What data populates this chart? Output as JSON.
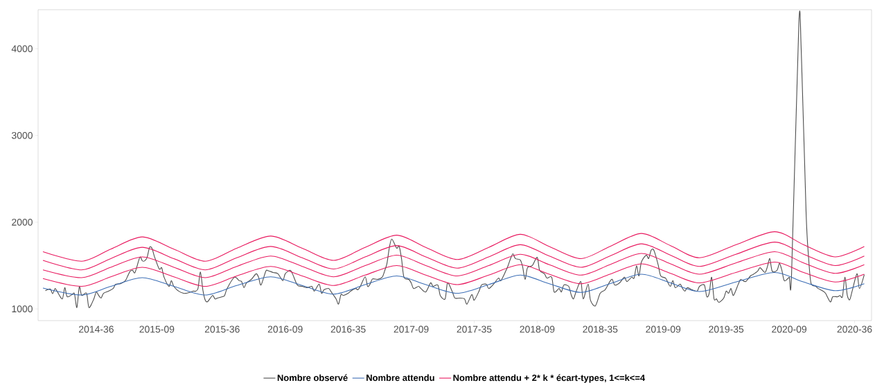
{
  "chart_data": {
    "type": "line",
    "xlim": [
      "2014-03-17",
      "2020-10-19"
    ],
    "ylim": [
      865,
      4450
    ],
    "xticks": [
      {
        "value": "2014-09-01",
        "label": "2014-36"
      },
      {
        "value": "2015-02-23",
        "label": "2015-09"
      },
      {
        "value": "2015-08-31",
        "label": "2015-36"
      },
      {
        "value": "2016-02-29",
        "label": "2016-09"
      },
      {
        "value": "2016-08-29",
        "label": "2016-35"
      },
      {
        "value": "2017-02-27",
        "label": "2017-09"
      },
      {
        "value": "2017-08-28",
        "label": "2017-35"
      },
      {
        "value": "2018-02-26",
        "label": "2018-09"
      },
      {
        "value": "2018-08-27",
        "label": "2018-35"
      },
      {
        "value": "2019-02-25",
        "label": "2019-09"
      },
      {
        "value": "2019-08-26",
        "label": "2019-35"
      },
      {
        "value": "2020-02-24",
        "label": "2020-09"
      },
      {
        "value": "2020-08-31",
        "label": "2020-36"
      }
    ],
    "yticks": [
      1000,
      2000,
      3000,
      4000
    ],
    "legend": "bottom",
    "marker": "none",
    "x": [
      "2014-03-31",
      "2014-07-21",
      "2014-10-13",
      "2015-01-12",
      "2015-04-13",
      "2015-07-13",
      "2015-10-12",
      "2016-01-18",
      "2016-04-18",
      "2016-07-18",
      "2016-10-17",
      "2017-01-16",
      "2017-04-10",
      "2017-07-10",
      "2017-10-09",
      "2018-01-08",
      "2018-04-02",
      "2018-07-02",
      "2018-09-24",
      "2018-12-24",
      "2019-03-18",
      "2019-06-10",
      "2019-09-23",
      "2020-01-13",
      "2020-04-06",
      "2020-07-06",
      "2020-09-28"
    ],
    "series": [
      {
        "name": "Nombre observé",
        "color": "#4d4d4d",
        "x": [
          "2014-04-07",
          "2014-04-21",
          "2014-04-28",
          "2014-05-05",
          "2014-05-12",
          "2014-05-26",
          "2014-06-02",
          "2014-06-09",
          "2014-06-23",
          "2014-06-30",
          "2014-07-07",
          "2014-07-14",
          "2014-07-21",
          "2014-08-04",
          "2014-08-11",
          "2014-08-25",
          "2014-09-01",
          "2014-09-08",
          "2014-09-15",
          "2014-09-22",
          "2014-10-06",
          "2014-10-20",
          "2014-10-27",
          "2014-11-10",
          "2014-11-24",
          "2014-12-01",
          "2014-12-08",
          "2014-12-15",
          "2014-12-22",
          "2015-01-05",
          "2015-01-12",
          "2015-01-19",
          "2015-01-26",
          "2015-02-02",
          "2015-02-09",
          "2015-02-16",
          "2015-03-02",
          "2015-03-09",
          "2015-03-16",
          "2015-03-30",
          "2015-04-06",
          "2015-04-13",
          "2015-04-27",
          "2015-05-11",
          "2015-05-18",
          "2015-06-01",
          "2015-06-08",
          "2015-06-15",
          "2015-06-22",
          "2015-06-29",
          "2015-07-06",
          "2015-07-13",
          "2015-07-20",
          "2015-08-03",
          "2015-08-10",
          "2015-08-17",
          "2015-08-31",
          "2015-09-07",
          "2015-09-14",
          "2015-10-05",
          "2015-10-19",
          "2015-10-26",
          "2015-11-02",
          "2015-11-09",
          "2015-11-23",
          "2015-12-07",
          "2015-12-14",
          "2015-12-21",
          "2016-01-04",
          "2016-01-11",
          "2016-01-25",
          "2016-02-08",
          "2016-02-22",
          "2016-02-29",
          "2016-03-14",
          "2016-03-21",
          "2016-04-04",
          "2016-04-18",
          "2016-05-02",
          "2016-05-16",
          "2016-05-23",
          "2016-06-06",
          "2016-06-13",
          "2016-06-20",
          "2016-07-04",
          "2016-07-11",
          "2016-07-25",
          "2016-08-01",
          "2016-08-08",
          "2016-08-15",
          "2016-08-29",
          "2016-09-05",
          "2016-09-19",
          "2016-09-26",
          "2016-10-03",
          "2016-10-17",
          "2016-10-24",
          "2016-10-31",
          "2016-11-07",
          "2016-11-21",
          "2016-12-05",
          "2016-12-12",
          "2016-12-19",
          "2016-12-26",
          "2017-01-02",
          "2017-01-16",
          "2017-01-23",
          "2017-01-30",
          "2017-02-06",
          "2017-02-20",
          "2017-02-27",
          "2017-03-06",
          "2017-03-20",
          "2017-03-27",
          "2017-04-10",
          "2017-04-24",
          "2017-05-01",
          "2017-05-15",
          "2017-05-22",
          "2017-06-05",
          "2017-06-12",
          "2017-06-26",
          "2017-07-03",
          "2017-07-17",
          "2017-07-31",
          "2017-08-07",
          "2017-08-21",
          "2017-08-28",
          "2017-09-11",
          "2017-09-18",
          "2017-10-02",
          "2017-10-09",
          "2017-10-23",
          "2017-11-06",
          "2017-11-13",
          "2017-11-27",
          "2017-12-04",
          "2017-12-11",
          "2017-12-18",
          "2017-12-25",
          "2018-01-08",
          "2018-01-15",
          "2018-01-22",
          "2018-01-29",
          "2018-02-12",
          "2018-02-26",
          "2018-03-05",
          "2018-03-19",
          "2018-03-26",
          "2018-04-09",
          "2018-04-16",
          "2018-04-30",
          "2018-05-07",
          "2018-05-14",
          "2018-05-28",
          "2018-06-04",
          "2018-06-11",
          "2018-06-18",
          "2018-07-02",
          "2018-07-09",
          "2018-07-23",
          "2018-07-30",
          "2018-08-13",
          "2018-08-27",
          "2018-09-10",
          "2018-09-24",
          "2018-10-01",
          "2018-10-08",
          "2018-10-22",
          "2018-11-05",
          "2018-11-12",
          "2018-11-26",
          "2018-12-03",
          "2018-12-10",
          "2018-12-17",
          "2018-12-24",
          "2019-01-07",
          "2019-01-14",
          "2019-01-21",
          "2019-01-28",
          "2019-02-04",
          "2019-02-11",
          "2019-02-18",
          "2019-03-04",
          "2019-03-11",
          "2019-03-18",
          "2019-03-25",
          "2019-04-01",
          "2019-04-15",
          "2019-04-22",
          "2019-04-29",
          "2019-05-06",
          "2019-05-20",
          "2019-06-03",
          "2019-06-10",
          "2019-06-24",
          "2019-07-01",
          "2019-07-08",
          "2019-07-15",
          "2019-07-22",
          "2019-07-29",
          "2019-08-05",
          "2019-08-19",
          "2019-08-26",
          "2019-09-02",
          "2019-09-09",
          "2019-09-16",
          "2019-09-30",
          "2019-10-07",
          "2019-10-21",
          "2019-11-04",
          "2019-11-11",
          "2019-11-25",
          "2019-12-02",
          "2019-12-16",
          "2019-12-23",
          "2019-12-30",
          "2020-01-06",
          "2020-01-20",
          "2020-01-27",
          "2020-02-03",
          "2020-02-10",
          "2020-02-24",
          "2020-03-02",
          "2020-03-23",
          "2020-03-30",
          "2020-04-13",
          "2020-04-20",
          "2020-04-27",
          "2020-05-11",
          "2020-05-18",
          "2020-06-01",
          "2020-06-08",
          "2020-06-22",
          "2020-06-29",
          "2020-07-13",
          "2020-07-20",
          "2020-07-27",
          "2020-08-03",
          "2020-08-10",
          "2020-08-17",
          "2020-08-24",
          "2020-09-07",
          "2020-09-14",
          "2020-09-28"
        ],
        "values": [
          1210,
          1230,
          1175,
          1235,
          1195,
          1115,
          1245,
          1140,
          1165,
          1175,
          1015,
          1255,
          1155,
          1180,
          1015,
          1115,
          1195,
          1155,
          1125,
          1180,
          1205,
          1235,
          1285,
          1290,
          1325,
          1380,
          1435,
          1445,
          1420,
          1595,
          1555,
          1555,
          1595,
          1710,
          1700,
          1605,
          1460,
          1475,
          1365,
          1260,
          1325,
          1260,
          1205,
          1180,
          1180,
          1195,
          1205,
          1205,
          1235,
          1425,
          1220,
          1100,
          1085,
          1155,
          1115,
          1125,
          1140,
          1155,
          1235,
          1365,
          1325,
          1315,
          1245,
          1300,
          1340,
          1405,
          1365,
          1275,
          1435,
          1440,
          1420,
          1405,
          1325,
          1405,
          1445,
          1405,
          1275,
          1260,
          1245,
          1260,
          1205,
          1285,
          1180,
          1220,
          1235,
          1195,
          1115,
          1055,
          1165,
          1155,
          1180,
          1205,
          1235,
          1220,
          1260,
          1370,
          1260,
          1285,
          1345,
          1340,
          1365,
          1435,
          1525,
          1710,
          1805,
          1700,
          1725,
          1580,
          1365,
          1340,
          1300,
          1235,
          1260,
          1235,
          1195,
          1300,
          1260,
          1275,
          1155,
          1115,
          1300,
          1195,
          1125,
          1125,
          1115,
          1055,
          1165,
          1100,
          1205,
          1275,
          1285,
          1235,
          1285,
          1355,
          1325,
          1435,
          1500,
          1580,
          1635,
          1580,
          1565,
          1485,
          1340,
          1475,
          1500,
          1595,
          1445,
          1405,
          1355,
          1365,
          1195,
          1235,
          1195,
          1275,
          1260,
          1165,
          1115,
          1195,
          1315,
          1115,
          1285,
          1100,
          1035,
          1180,
          1220,
          1315,
          1340,
          1275,
          1300,
          1365,
          1315,
          1365,
          1355,
          1495,
          1380,
          1540,
          1620,
          1580,
          1675,
          1685,
          1605,
          1500,
          1380,
          1355,
          1300,
          1260,
          1325,
          1245,
          1285,
          1235,
          1205,
          1245,
          1220,
          1205,
          1260,
          1275,
          1140,
          1180,
          1365,
          1115,
          1115,
          1075,
          1125,
          1205,
          1180,
          1235,
          1155,
          1285,
          1340,
          1315,
          1380,
          1395,
          1435,
          1475,
          1420,
          1485,
          1580,
          1435,
          1445,
          1525,
          1445,
          1325,
          1365,
          1405,
          4290,
          3970,
          2100,
          1600,
          1300,
          1260,
          1235,
          1205,
          1180,
          1080,
          1140,
          1140,
          1155,
          1140,
          1365,
          1155,
          1105,
          1205,
          1405,
          1235,
          1395
        ]
      },
      {
        "name": "Nombre attendu",
        "color": "#3b6db5",
        "values": [
          1240,
          1160,
          1260,
          1360,
          1260,
          1160,
          1270,
          1370,
          1270,
          1170,
          1280,
          1380,
          1280,
          1180,
          1280,
          1390,
          1290,
          1190,
          1290,
          1400,
          1300,
          1200,
          1310,
          1420,
          1310,
          1210,
          1290
        ]
      },
      {
        "name": "Nombre attendu + 2* k * écart-types, 1<=k<=4",
        "color": "#e8185e",
        "values": [
          1350,
          1260,
          1370,
          1480,
          1370,
          1260,
          1380,
          1490,
          1380,
          1270,
          1390,
          1500,
          1390,
          1280,
          1390,
          1510,
          1400,
          1290,
          1400,
          1520,
          1410,
          1300,
          1420,
          1540,
          1420,
          1310,
          1400
        ]
      },
      {
        "color": "#e8185e",
        "values": [
          1450,
          1360,
          1480,
          1600,
          1480,
          1360,
          1490,
          1610,
          1490,
          1370,
          1500,
          1620,
          1500,
          1380,
          1500,
          1630,
          1510,
          1390,
          1510,
          1640,
          1520,
          1400,
          1530,
          1660,
          1530,
          1410,
          1510
        ]
      },
      {
        "color": "#e8185e",
        "values": [
          1560,
          1450,
          1580,
          1710,
          1580,
          1450,
          1590,
          1720,
          1590,
          1460,
          1600,
          1730,
          1600,
          1470,
          1600,
          1740,
          1610,
          1480,
          1610,
          1750,
          1620,
          1490,
          1630,
          1770,
          1630,
          1500,
          1610
        ]
      },
      {
        "color": "#e8185e",
        "values": [
          1660,
          1550,
          1690,
          1830,
          1690,
          1550,
          1700,
          1840,
          1700,
          1560,
          1710,
          1850,
          1710,
          1570,
          1710,
          1860,
          1720,
          1580,
          1720,
          1870,
          1730,
          1590,
          1740,
          1890,
          1740,
          1600,
          1720
        ]
      }
    ]
  }
}
